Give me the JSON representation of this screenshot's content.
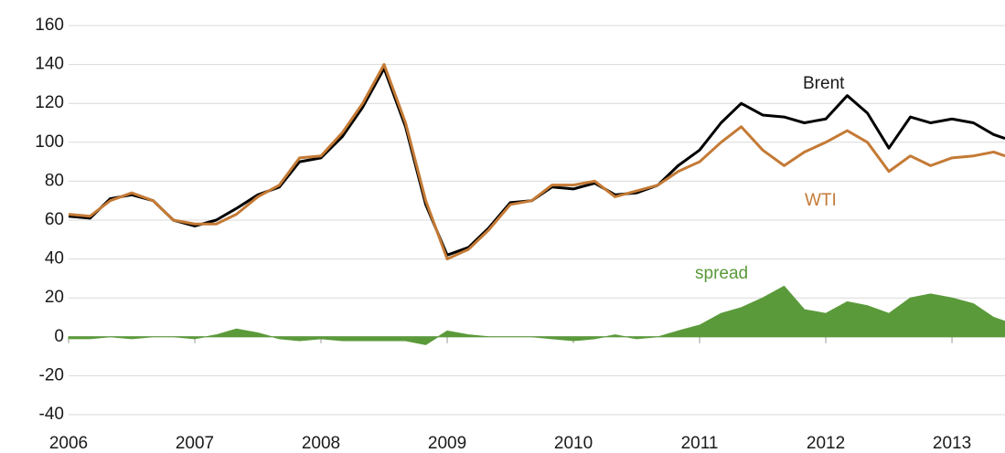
{
  "chart_data": {
    "type": "line",
    "x": [
      2006.0,
      2006.17,
      2006.33,
      2006.5,
      2006.67,
      2006.83,
      2007.0,
      2007.17,
      2007.33,
      2007.5,
      2007.67,
      2007.83,
      2008.0,
      2008.17,
      2008.33,
      2008.5,
      2008.67,
      2008.83,
      2009.0,
      2009.17,
      2009.33,
      2009.5,
      2009.67,
      2009.83,
      2010.0,
      2010.17,
      2010.33,
      2010.5,
      2010.67,
      2010.83,
      2011.0,
      2011.17,
      2011.33,
      2011.5,
      2011.67,
      2011.83,
      2012.0,
      2012.17,
      2012.33,
      2012.5,
      2012.67,
      2012.83,
      2013.0,
      2013.17,
      2013.33,
      2013.42
    ],
    "series": [
      {
        "name": "Brent",
        "color": "#000000",
        "values": [
          62,
          61,
          71,
          73,
          70,
          60,
          57,
          60,
          66,
          73,
          77,
          90,
          92,
          103,
          118,
          138,
          108,
          68,
          42,
          46,
          56,
          69,
          70,
          77,
          76,
          79,
          73,
          74,
          78,
          88,
          96,
          110,
          120,
          114,
          113,
          110,
          112,
          124,
          115,
          97,
          113,
          110,
          112,
          110,
          104,
          102
        ]
      },
      {
        "name": "WTI",
        "color": "#c47a35",
        "values": [
          63,
          62,
          70,
          74,
          70,
          60,
          58,
          58,
          63,
          72,
          78,
          92,
          93,
          105,
          120,
          140,
          110,
          70,
          40,
          45,
          55,
          68,
          70,
          78,
          78,
          80,
          72,
          75,
          78,
          85,
          90,
          100,
          108,
          96,
          88,
          95,
          100,
          106,
          100,
          85,
          93,
          88,
          92,
          93,
          95,
          93
        ]
      },
      {
        "name": "spread",
        "color": "#5a9a3a",
        "area": true,
        "values": [
          -1,
          -1,
          0,
          -1,
          0,
          0,
          -1,
          1,
          4,
          2,
          -1,
          -2,
          -1,
          -2,
          -2,
          -2,
          -2,
          -4,
          3,
          1,
          0,
          0,
          0,
          -1,
          -2,
          -1,
          1,
          -1,
          0,
          3,
          6,
          12,
          15,
          20,
          26,
          14,
          12,
          18,
          16,
          12,
          20,
          22,
          20,
          17,
          10,
          8
        ]
      }
    ],
    "xlim": [
      2006,
      2013.42
    ],
    "xticks": [
      2006,
      2007,
      2008,
      2009,
      2010,
      2011,
      2012,
      2013
    ],
    "ylim": [
      -40,
      160
    ],
    "yticks": [
      -40,
      -20,
      0,
      20,
      40,
      60,
      80,
      100,
      120,
      140,
      160
    ],
    "grid": true
  }
}
